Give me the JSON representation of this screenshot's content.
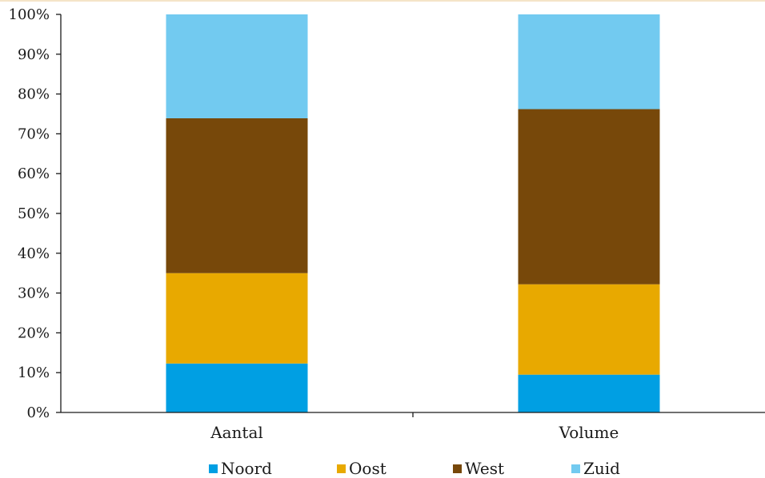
{
  "chart_data": {
    "type": "bar",
    "stacked": true,
    "categories": [
      "Aantal",
      "Volume"
    ],
    "series": [
      {
        "name": "Noord",
        "color": "#009fe3",
        "values": [
          12.3,
          9.5
        ]
      },
      {
        "name": "Oost",
        "color": "#e8a900",
        "values": [
          22.7,
          22.7
        ]
      },
      {
        "name": "West",
        "color": "#77480a",
        "values": [
          38.9,
          44.0
        ]
      },
      {
        "name": "Zuid",
        "color": "#72caf0",
        "values": [
          26.1,
          23.8
        ]
      }
    ],
    "ylim": [
      0,
      100
    ],
    "yticks": [
      "0%",
      "10%",
      "20%",
      "30%",
      "40%",
      "50%",
      "60%",
      "70%",
      "80%",
      "90%",
      "100%"
    ],
    "grid": false,
    "legend_position": "bottom"
  }
}
